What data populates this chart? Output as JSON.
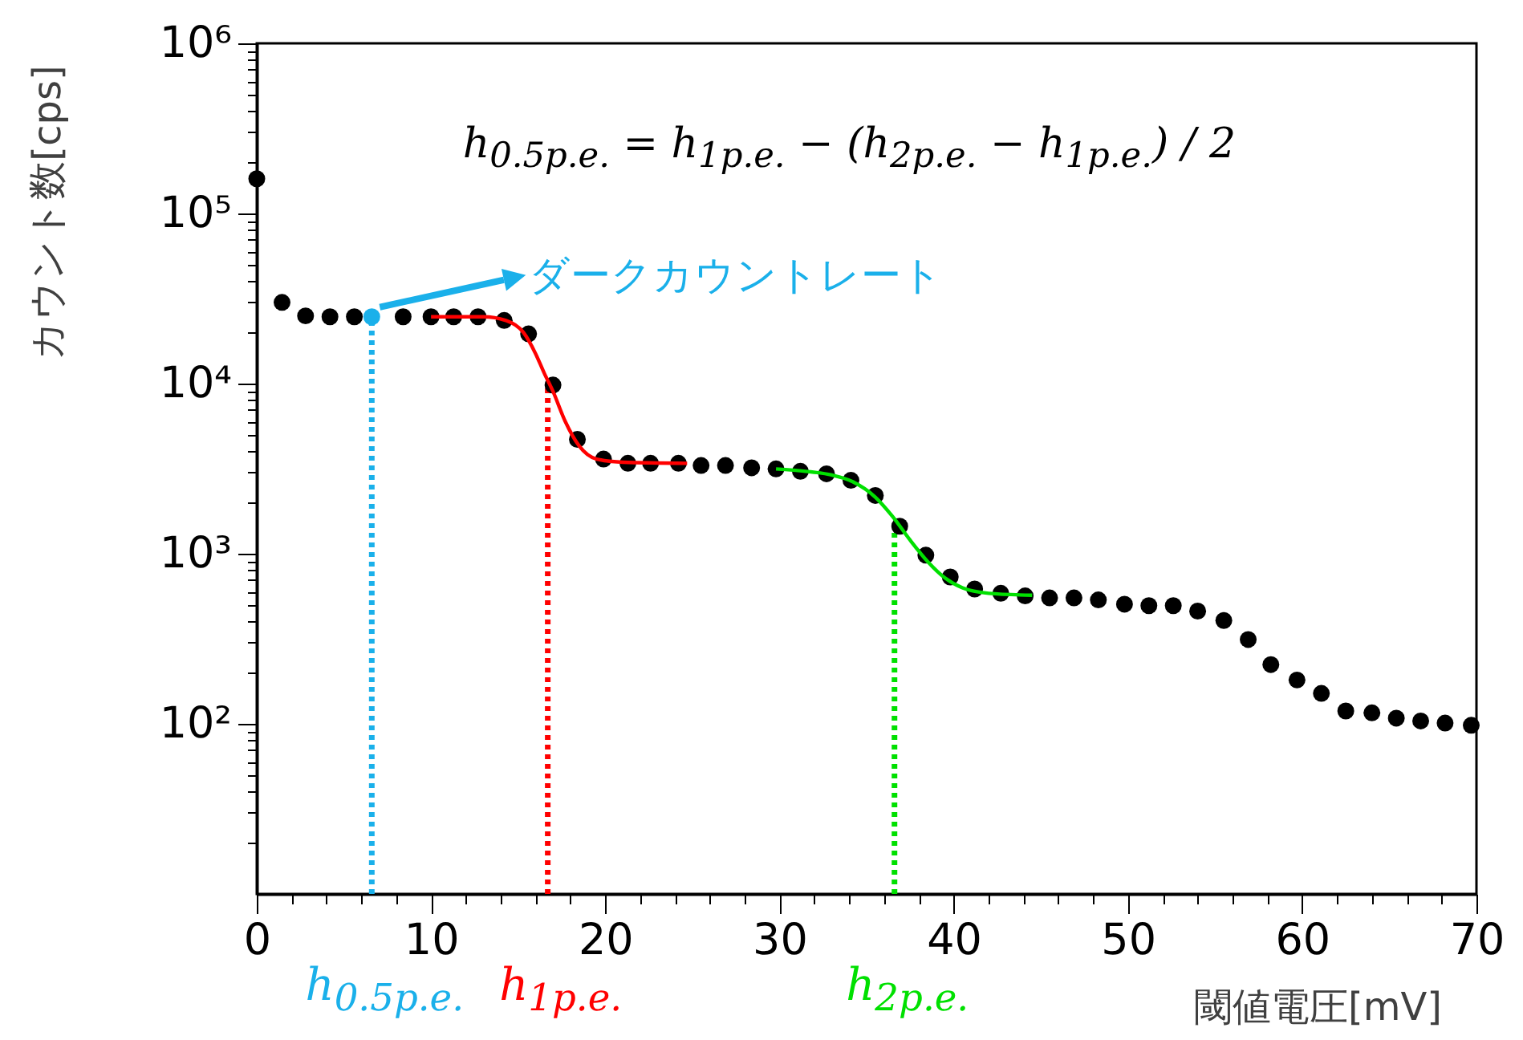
{
  "chart_data": {
    "type": "scatter",
    "xlabel": "閾値電圧[mV]",
    "ylabel": "カウント数[cps]",
    "xlim": [
      0,
      70
    ],
    "ylim": [
      10,
      1000000
    ],
    "log": "y",
    "grid": false,
    "xticks": [
      0,
      {
        "value": 2,
        "label": null
      },
      {
        "value": 4,
        "label": null
      },
      {
        "value": 6,
        "label": null
      },
      {
        "value": 8,
        "label": null
      },
      10,
      {
        "value": 12,
        "label": null
      },
      {
        "value": 14,
        "label": null
      },
      {
        "value": 16,
        "label": null
      },
      {
        "value": 18,
        "label": null
      },
      20,
      {
        "value": 22,
        "label": null
      },
      {
        "value": 24,
        "label": null
      },
      {
        "value": 26,
        "label": null
      },
      {
        "value": 28,
        "label": null
      },
      30,
      {
        "value": 32,
        "label": null
      },
      {
        "value": 34,
        "label": null
      },
      {
        "value": 36,
        "label": null
      },
      {
        "value": 38,
        "label": null
      },
      40,
      {
        "value": 42,
        "label": null
      },
      {
        "value": 44,
        "label": null
      },
      {
        "value": 46,
        "label": null
      },
      {
        "value": 48,
        "label": null
      },
      50,
      {
        "value": 52,
        "label": null
      },
      {
        "value": 54,
        "label": null
      },
      {
        "value": 56,
        "label": null
      },
      {
        "value": 58,
        "label": null
      },
      60,
      {
        "value": 62,
        "label": null
      },
      {
        "value": 64,
        "label": null
      },
      {
        "value": 66,
        "label": null
      },
      {
        "value": 68,
        "label": null
      },
      70
    ],
    "yticks": [
      {
        "value": 20,
        "label": null
      },
      {
        "value": 30,
        "label": null
      },
      {
        "value": 40,
        "label": null
      },
      {
        "value": 50,
        "label": null
      },
      {
        "value": 60,
        "label": null
      },
      {
        "value": 70,
        "label": null
      },
      {
        "value": 80,
        "label": null
      },
      {
        "value": 90,
        "label": null
      },
      {
        "value": 100,
        "label": "10²"
      },
      {
        "value": 200,
        "label": null
      },
      {
        "value": 300,
        "label": null
      },
      {
        "value": 400,
        "label": null
      },
      {
        "value": 500,
        "label": null
      },
      {
        "value": 600,
        "label": null
      },
      {
        "value": 700,
        "label": null
      },
      {
        "value": 800,
        "label": null
      },
      {
        "value": 900,
        "label": null
      },
      {
        "value": 1000,
        "label": "10³"
      },
      {
        "value": 2000,
        "label": null
      },
      {
        "value": 3000,
        "label": null
      },
      {
        "value": 4000,
        "label": null
      },
      {
        "value": 5000,
        "label": null
      },
      {
        "value": 6000,
        "label": null
      },
      {
        "value": 7000,
        "label": null
      },
      {
        "value": 8000,
        "label": null
      },
      {
        "value": 9000,
        "label": null
      },
      {
        "value": 10000,
        "label": "10⁴"
      },
      {
        "value": 20000,
        "label": null
      },
      {
        "value": 30000,
        "label": null
      },
      {
        "value": 40000,
        "label": null
      },
      {
        "value": 50000,
        "label": null
      },
      {
        "value": 60000,
        "label": null
      },
      {
        "value": 70000,
        "label": null
      },
      {
        "value": 80000,
        "label": null
      },
      {
        "value": 90000,
        "label": null
      },
      {
        "value": 100000,
        "label": "10⁵"
      },
      {
        "value": 200000,
        "label": null
      },
      {
        "value": 300000,
        "label": null
      },
      {
        "value": 400000,
        "label": null
      },
      {
        "value": 500000,
        "label": null
      },
      {
        "value": 600000,
        "label": null
      },
      {
        "value": 700000,
        "label": null
      },
      {
        "value": 800000,
        "label": null
      },
      {
        "value": 900000,
        "label": null
      },
      {
        "value": 1000000,
        "label": "10⁶"
      }
    ],
    "annotations": [
      "h$_{0.5p.e.}$ = h$_{1p.e.}$ − (h$_{2p.e.}$ − h$_{1p.e.}$) / 2",
      {
        "text": "ダークカウントレート",
        "x": 6.6,
        "y": 24700
      }
    ],
    "series": [
      {
        "type": "line",
        "name": "h$_{0.5p.e.}$",
        "color": "#1ab0ea",
        "line_style": "dotted",
        "marker": "none",
        "x": [
          6.6,
          6.6
        ],
        "values": [
          10,
          24700
        ]
      },
      {
        "type": "line",
        "name": "h$_{1p.e.}$",
        "color": "#ff0000",
        "line_style": "dotted",
        "marker": "none",
        "x": [
          16.7,
          16.7
        ],
        "values": [
          10,
          10000
        ]
      },
      {
        "type": "line",
        "name": "h$_{2p.e.}$",
        "color": "#00e000",
        "line_style": "dotted",
        "marker": "none",
        "x": [
          36.6,
          36.6
        ],
        "values": [
          10,
          1450
        ]
      },
      {
        "color": "#000000",
        "marker": "circle",
        "x": [
          0,
          1.45,
          2.8,
          4.2,
          5.6,
          8.4,
          10,
          11.3,
          12.7,
          14.2,
          15.6,
          17,
          18.4,
          19.9,
          21.3,
          22.6,
          24.2,
          25.5,
          26.9,
          28.4,
          29.8,
          31.2,
          32.7,
          34.1,
          35.5,
          36.9,
          38.4,
          39.8,
          41.2,
          42.7,
          44.1,
          45.5,
          46.9,
          48.3,
          49.8,
          51.2,
          52.6,
          54,
          55.5,
          56.9,
          58.2,
          59.7,
          61.1,
          62.5,
          64,
          65.4,
          66.8,
          68.2,
          69.7
        ],
        "values": [
          160000,
          30000,
          25000,
          24700,
          24700,
          24700,
          24700,
          24700,
          24700,
          23500,
          19600,
          9800,
          4700,
          3600,
          3400,
          3400,
          3400,
          3300,
          3300,
          3200,
          3150,
          3050,
          2950,
          2700,
          2200,
          1450,
          980,
          730,
          620,
          585,
          565,
          550,
          550,
          535,
          505,
          495,
          495,
          460,
          405,
          313,
          223,
          181,
          151,
          119,
          116,
          108,
          104,
          101,
          98
        ]
      },
      {
        "color": "#1ab0ea",
        "marker": "circle",
        "x": [
          6.6
        ],
        "values": [
          24700
        ]
      },
      {
        "type": "line",
        "color": "#ff0000",
        "line_style": "solid",
        "marker": "none",
        "x": [
          10,
          13,
          14.3,
          15.3,
          16,
          16.5,
          17,
          17.7,
          18.5,
          19.5,
          21,
          24.7
        ],
        "values": [
          24700,
          24700,
          23500,
          20000,
          15000,
          11500,
          9000,
          6000,
          4300,
          3600,
          3450,
          3400
        ]
      },
      {
        "type": "line",
        "color": "#00e000",
        "line_style": "solid",
        "marker": "none",
        "x": [
          29.8,
          31.5,
          33,
          34.2,
          35.5,
          36.5,
          37.5,
          38.5,
          39.5,
          40.5,
          42,
          44.5
        ],
        "values": [
          3150,
          3050,
          2900,
          2650,
          2150,
          1650,
          1200,
          900,
          720,
          630,
          585,
          570
        ]
      }
    ]
  }
}
